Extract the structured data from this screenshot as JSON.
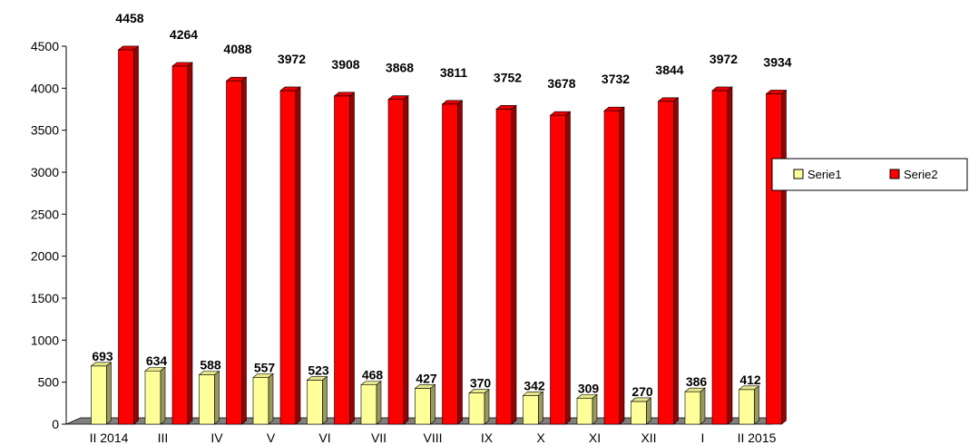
{
  "chart_data": {
    "type": "bar",
    "categories": [
      "II 2014",
      "III",
      "IV",
      "V",
      "VI",
      "VII",
      "VIII",
      "IX",
      "X",
      "XI",
      "XII",
      "I",
      "II 2015"
    ],
    "series": [
      {
        "name": "Serie1",
        "values": [
          693,
          634,
          588,
          557,
          523,
          468,
          427,
          370,
          342,
          309,
          270,
          386,
          412
        ],
        "color": "#ffff99"
      },
      {
        "name": "Serie2",
        "values": [
          4458,
          4264,
          4088,
          3972,
          3908,
          3868,
          3811,
          3752,
          3678,
          3732,
          3844,
          3972,
          3934
        ],
        "color": "#ff0000"
      }
    ],
    "y_ticks": [
      "0",
      "500",
      "1000",
      "1500",
      "2000",
      "2500",
      "3000",
      "3500",
      "4000",
      "4500"
    ],
    "ylim": [
      0,
      4500
    ],
    "legend": [
      "Serie1",
      "Serie2"
    ],
    "legend_position": "right",
    "grid": false,
    "style": "3d-bar"
  }
}
